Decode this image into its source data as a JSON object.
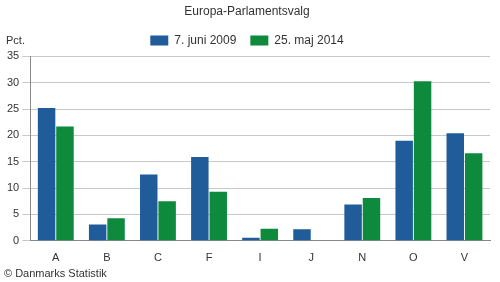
{
  "chart_data": {
    "type": "bar",
    "title": "Europa-Parlamentsvalg",
    "ylabel": "Pct.",
    "footer": "© Danmarks Statistik",
    "categories": [
      "A",
      "B",
      "C",
      "F",
      "I",
      "J",
      "N",
      "O",
      "V"
    ],
    "series": [
      {
        "name": "7. juni 2009",
        "color": "#1f5c99",
        "values": [
          25.2,
          3.1,
          12.6,
          15.9,
          0.6,
          2.2,
          6.9,
          19.0,
          20.4
        ]
      },
      {
        "name": "25. maj 2014",
        "color": "#0e8a3c",
        "values": [
          21.7,
          4.3,
          7.5,
          9.3,
          2.3,
          null,
          8.1,
          30.3,
          16.6
        ]
      }
    ],
    "ylim": [
      0,
      35
    ],
    "yticks": [
      0,
      5,
      10,
      15,
      20,
      25,
      30,
      35
    ],
    "grid": true,
    "legend": "top"
  }
}
